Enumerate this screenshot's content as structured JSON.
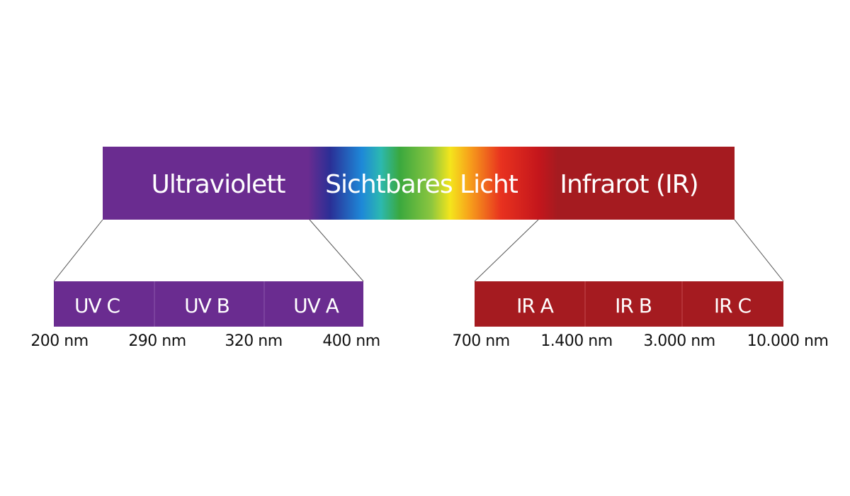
{
  "spectrum": {
    "bands": [
      "Ultraviolett",
      "Sichtbares Licht",
      "Infrarot (IR)"
    ]
  },
  "uv": {
    "segments": [
      "UV C",
      "UV B",
      "UV A"
    ],
    "wavelengths": [
      "200 nm",
      "290 nm",
      "320 nm",
      "400 nm"
    ]
  },
  "ir": {
    "segments": [
      "IR A",
      "IR B",
      "IR C"
    ],
    "wavelengths": [
      "700 nm",
      "1.400 nm",
      "3.000 nm",
      "10.000 nm"
    ]
  }
}
